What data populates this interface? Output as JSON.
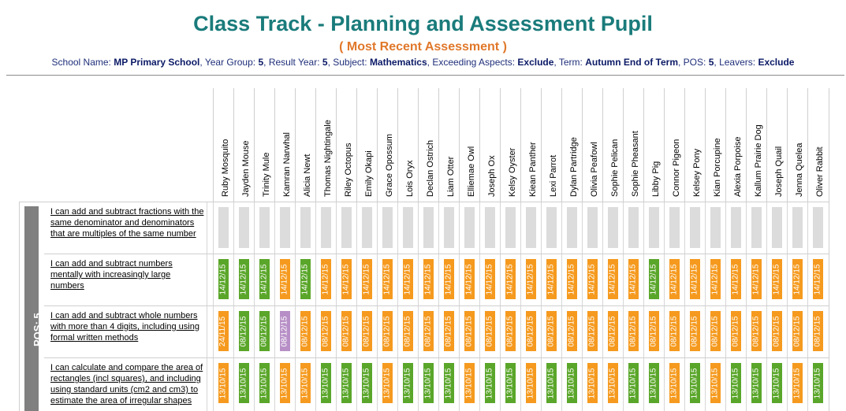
{
  "title": "Class Track - Planning and Assessment Pupil",
  "subtitle": "( Most Recent Assessment )",
  "filters": [
    {
      "label": "School Name:",
      "value": "MP Primary School"
    },
    {
      "label": "Year Group:",
      "value": "5"
    },
    {
      "label": "Result Year:",
      "value": "5"
    },
    {
      "label": "Subject:",
      "value": "Mathematics"
    },
    {
      "label": "Exceeding Aspects:",
      "value": "Exclude"
    },
    {
      "label": "Term:",
      "value": "Autumn End of Term"
    },
    {
      "label": "POS:",
      "value": "5"
    },
    {
      "label": "Leavers:",
      "value": "Exclude"
    }
  ],
  "pos_label": "POS: 5",
  "colors": {
    "green": "#5aa62a",
    "orange": "#f59a1f",
    "purple": "#b78fc6",
    "grey": "#dcdcdc"
  },
  "pupils": [
    "Ruby Mosquito",
    "Jayden Mouse",
    "Trinity Mule",
    "Kamran Narwhal",
    "Alicia Newt",
    "Thomas Nightingale",
    "Riley Octopus",
    "Emily Okapi",
    "Grace Opossum",
    "Lois Oryx",
    "Declan Ostrich",
    "Liam Otter",
    "Elliemae Owl",
    "Joseph Ox",
    "Kelsy Oyster",
    "Kiean Panther",
    "Lexi Parrot",
    "Dylan Partridge",
    "Olivia Peafowl",
    "Sophie Pelican",
    "Sophie Pheasant",
    "Libby Pig",
    "Connor Pigeon",
    "Kelsey Pony",
    "Kian Porcupine",
    "Alexia Porpoise",
    "Kallum Prairie Dog",
    "Joseph Quail",
    "Jenna Quelea",
    "Oliver Rabbit"
  ],
  "objectives": [
    {
      "text": "I can add and subtract fractions with the same denominator and denominators that are multiples of the same number",
      "cells": [
        {
          "date": "",
          "status": "grey"
        },
        {
          "date": "",
          "status": "grey"
        },
        {
          "date": "",
          "status": "grey"
        },
        {
          "date": "",
          "status": "grey"
        },
        {
          "date": "",
          "status": "grey"
        },
        {
          "date": "",
          "status": "grey"
        },
        {
          "date": "",
          "status": "grey"
        },
        {
          "date": "",
          "status": "grey"
        },
        {
          "date": "",
          "status": "grey"
        },
        {
          "date": "",
          "status": "grey"
        },
        {
          "date": "",
          "status": "grey"
        },
        {
          "date": "",
          "status": "grey"
        },
        {
          "date": "",
          "status": "grey"
        },
        {
          "date": "",
          "status": "grey"
        },
        {
          "date": "",
          "status": "grey"
        },
        {
          "date": "",
          "status": "grey"
        },
        {
          "date": "",
          "status": "grey"
        },
        {
          "date": "",
          "status": "grey"
        },
        {
          "date": "",
          "status": "grey"
        },
        {
          "date": "",
          "status": "grey"
        },
        {
          "date": "",
          "status": "grey"
        },
        {
          "date": "",
          "status": "grey"
        },
        {
          "date": "",
          "status": "grey"
        },
        {
          "date": "",
          "status": "grey"
        },
        {
          "date": "",
          "status": "grey"
        },
        {
          "date": "",
          "status": "grey"
        },
        {
          "date": "",
          "status": "grey"
        },
        {
          "date": "",
          "status": "grey"
        },
        {
          "date": "",
          "status": "grey"
        },
        {
          "date": "",
          "status": "grey"
        }
      ]
    },
    {
      "text": "I can add and subtract numbers mentally with increasingly large numbers",
      "cells": [
        {
          "date": "14/12/15",
          "status": "green"
        },
        {
          "date": "14/12/15",
          "status": "green"
        },
        {
          "date": "14/12/15",
          "status": "green"
        },
        {
          "date": "14/12/15",
          "status": "orange"
        },
        {
          "date": "14/12/15",
          "status": "green"
        },
        {
          "date": "14/12/15",
          "status": "orange"
        },
        {
          "date": "14/12/15",
          "status": "orange"
        },
        {
          "date": "14/12/15",
          "status": "orange"
        },
        {
          "date": "14/12/15",
          "status": "orange"
        },
        {
          "date": "14/12/15",
          "status": "orange"
        },
        {
          "date": "14/12/15",
          "status": "orange"
        },
        {
          "date": "14/12/15",
          "status": "orange"
        },
        {
          "date": "14/12/15",
          "status": "orange"
        },
        {
          "date": "14/12/15",
          "status": "orange"
        },
        {
          "date": "14/12/15",
          "status": "orange"
        },
        {
          "date": "14/12/15",
          "status": "orange"
        },
        {
          "date": "14/12/15",
          "status": "orange"
        },
        {
          "date": "14/12/15",
          "status": "orange"
        },
        {
          "date": "14/12/15",
          "status": "orange"
        },
        {
          "date": "14/12/15",
          "status": "orange"
        },
        {
          "date": "14/12/15",
          "status": "orange"
        },
        {
          "date": "14/12/15",
          "status": "green"
        },
        {
          "date": "14/12/15",
          "status": "orange"
        },
        {
          "date": "14/12/15",
          "status": "orange"
        },
        {
          "date": "14/12/15",
          "status": "orange"
        },
        {
          "date": "14/12/15",
          "status": "orange"
        },
        {
          "date": "14/12/15",
          "status": "orange"
        },
        {
          "date": "14/12/15",
          "status": "orange"
        },
        {
          "date": "14/12/15",
          "status": "orange"
        },
        {
          "date": "14/12/15",
          "status": "orange"
        }
      ]
    },
    {
      "text": "I can add and subtract whole numbers with more than 4 digits, including using formal written methods",
      "cells": [
        {
          "date": "24/11/15",
          "status": "orange"
        },
        {
          "date": "08/12/15",
          "status": "green"
        },
        {
          "date": "08/12/15",
          "status": "green"
        },
        {
          "date": "08/12/15",
          "status": "purple"
        },
        {
          "date": "08/12/15",
          "status": "orange"
        },
        {
          "date": "08/12/15",
          "status": "orange"
        },
        {
          "date": "08/12/15",
          "status": "orange"
        },
        {
          "date": "08/12/15",
          "status": "orange"
        },
        {
          "date": "08/12/15",
          "status": "orange"
        },
        {
          "date": "08/12/15",
          "status": "orange"
        },
        {
          "date": "08/12/15",
          "status": "orange"
        },
        {
          "date": "08/12/15",
          "status": "orange"
        },
        {
          "date": "08/12/15",
          "status": "orange"
        },
        {
          "date": "08/12/15",
          "status": "orange"
        },
        {
          "date": "08/12/15",
          "status": "orange"
        },
        {
          "date": "08/12/15",
          "status": "orange"
        },
        {
          "date": "08/12/15",
          "status": "orange"
        },
        {
          "date": "08/12/15",
          "status": "orange"
        },
        {
          "date": "08/12/15",
          "status": "orange"
        },
        {
          "date": "08/12/15",
          "status": "orange"
        },
        {
          "date": "08/12/15",
          "status": "orange"
        },
        {
          "date": "08/12/15",
          "status": "orange"
        },
        {
          "date": "08/12/15",
          "status": "orange"
        },
        {
          "date": "08/12/15",
          "status": "orange"
        },
        {
          "date": "08/12/15",
          "status": "orange"
        },
        {
          "date": "08/12/15",
          "status": "orange"
        },
        {
          "date": "08/12/15",
          "status": "orange"
        },
        {
          "date": "08/12/15",
          "status": "orange"
        },
        {
          "date": "08/12/15",
          "status": "orange"
        },
        {
          "date": "08/12/15",
          "status": "orange"
        }
      ]
    },
    {
      "text": "I can calculate and compare the area of rectangles (incl squares), and including using standard units (cm2 and cm3) to estimate the area of irregular shapes",
      "cells": [
        {
          "date": "13/10/15",
          "status": "orange"
        },
        {
          "date": "13/10/15",
          "status": "green"
        },
        {
          "date": "13/10/15",
          "status": "green"
        },
        {
          "date": "13/10/15",
          "status": "orange"
        },
        {
          "date": "13/10/15",
          "status": "orange"
        },
        {
          "date": "13/10/15",
          "status": "green"
        },
        {
          "date": "13/10/15",
          "status": "green"
        },
        {
          "date": "13/10/15",
          "status": "green"
        },
        {
          "date": "13/10/15",
          "status": "orange"
        },
        {
          "date": "13/10/15",
          "status": "green"
        },
        {
          "date": "13/10/15",
          "status": "green"
        },
        {
          "date": "13/10/15",
          "status": "green"
        },
        {
          "date": "13/10/15",
          "status": "orange"
        },
        {
          "date": "13/10/15",
          "status": "green"
        },
        {
          "date": "13/10/15",
          "status": "green"
        },
        {
          "date": "13/10/15",
          "status": "orange"
        },
        {
          "date": "13/10/15",
          "status": "green"
        },
        {
          "date": "13/10/15",
          "status": "green"
        },
        {
          "date": "13/10/15",
          "status": "orange"
        },
        {
          "date": "13/10/15",
          "status": "orange"
        },
        {
          "date": "13/10/15",
          "status": "green"
        },
        {
          "date": "13/10/15",
          "status": "green"
        },
        {
          "date": "13/10/15",
          "status": "orange"
        },
        {
          "date": "13/10/15",
          "status": "green"
        },
        {
          "date": "13/10/15",
          "status": "orange"
        },
        {
          "date": "13/10/15",
          "status": "green"
        },
        {
          "date": "13/10/15",
          "status": "green"
        },
        {
          "date": "13/10/15",
          "status": "green"
        },
        {
          "date": "13/10/15",
          "status": "orange"
        },
        {
          "date": "13/10/15",
          "status": "green"
        }
      ]
    }
  ]
}
